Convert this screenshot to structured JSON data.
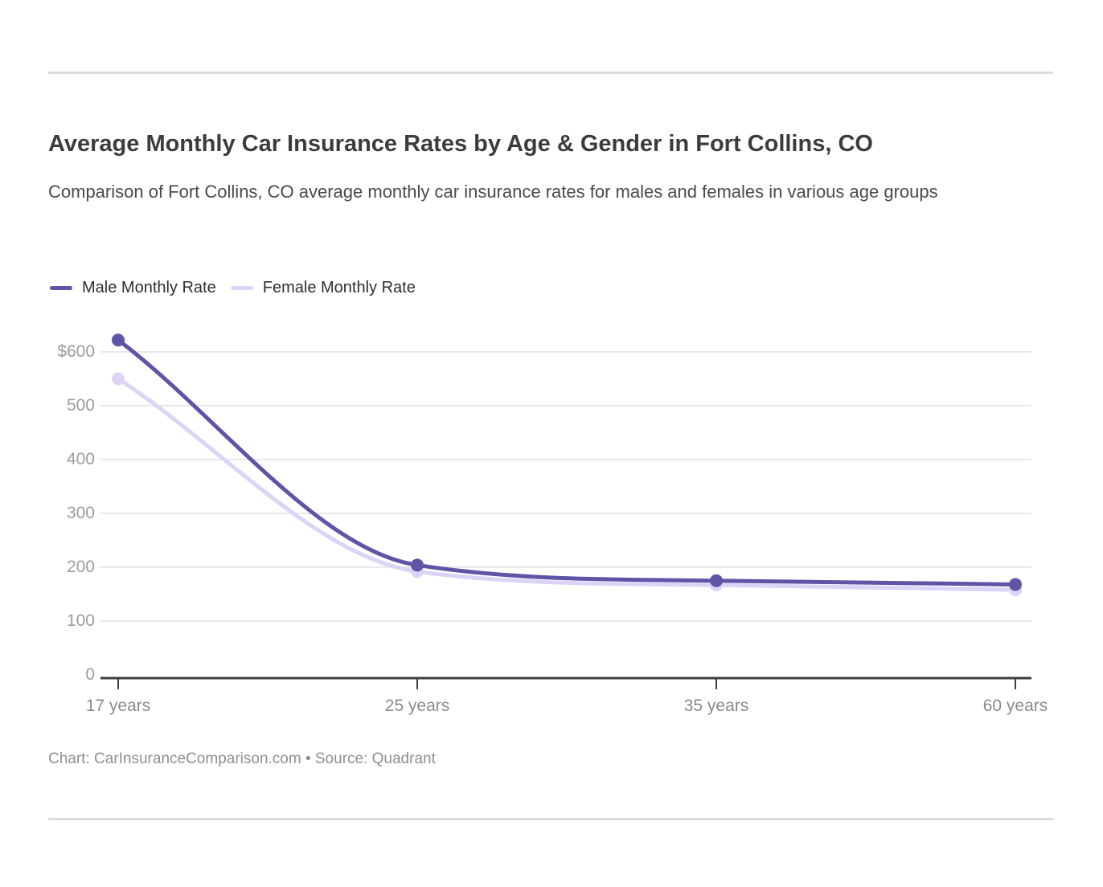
{
  "page": {
    "title": "Average Monthly Car Insurance Rates by Age & Gender in Fort Collins, CO",
    "subtitle": "Comparison of Fort Collins, CO average monthly car insurance rates for males and females in various age groups"
  },
  "legend": {
    "items": [
      {
        "label": "Male Monthly Rate",
        "color": "#5e55a7"
      },
      {
        "label": "Female Monthly Rate",
        "color": "#dcd3f7"
      }
    ]
  },
  "chart_data": {
    "type": "line",
    "title": "Average Monthly Car Insurance Rates by Age & Gender in Fort Collins, CO",
    "subtitle": "Comparison of Fort Collins, CO average monthly car insurance rates for males and females in various age groups",
    "categories": [
      "17 years",
      "25 years",
      "35 years",
      "60 years"
    ],
    "series": [
      {
        "name": "Male Monthly Rate",
        "color": "#5e55a7",
        "values": [
          622,
          204,
          175,
          168
        ]
      },
      {
        "name": "Female Monthly Rate",
        "color": "#dcd3f7",
        "values": [
          550,
          192,
          167,
          158
        ]
      }
    ],
    "xlabel": "",
    "ylabel": "",
    "y_ticks": [
      {
        "label": "$600",
        "value": 600
      },
      {
        "label": "500",
        "value": 500
      },
      {
        "label": "400",
        "value": 400
      },
      {
        "label": "300",
        "value": 300
      },
      {
        "label": "200",
        "value": 200
      },
      {
        "label": "100",
        "value": 100
      },
      {
        "label": "0",
        "value": 0
      }
    ],
    "ylim": [
      0,
      640
    ],
    "grid": true,
    "legend_position": "top-left",
    "curve": "smooth",
    "colors": {
      "gridline": "#e9e9e9",
      "axis": "#3d3d3d",
      "y_tick_label": "#9c9c9c",
      "x_tick_label": "#8a8a8a"
    }
  },
  "footer": {
    "credit": "Chart: CarInsuranceComparison.com • Source: Quadrant"
  }
}
